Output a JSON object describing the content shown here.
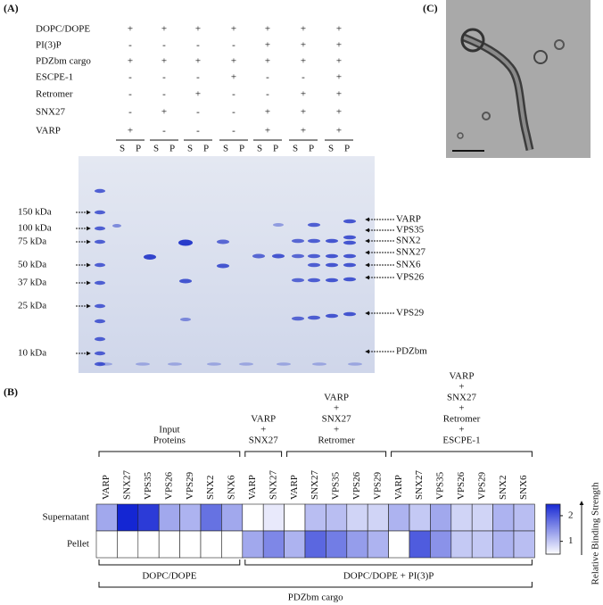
{
  "panels": {
    "a": "(A)",
    "b": "(B)",
    "c": "(C)"
  },
  "gel": {
    "conditions": [
      {
        "label": "DOPC/DOPE",
        "states": [
          "+",
          "+",
          "+",
          "+",
          "+",
          "+",
          "+"
        ]
      },
      {
        "label": "PI(3)P",
        "states": [
          "-",
          "-",
          "-",
          "-",
          "+",
          "+",
          "+"
        ]
      },
      {
        "label": "PDZbm cargo",
        "states": [
          "+",
          "+",
          "+",
          "+",
          "+",
          "+",
          "+"
        ]
      },
      {
        "label": "ESCPE-1",
        "states": [
          "-",
          "-",
          "-",
          "+",
          "-",
          "-",
          "+"
        ]
      },
      {
        "label": "Retromer",
        "states": [
          "-",
          "-",
          "+",
          "-",
          "-",
          "+",
          "+"
        ]
      },
      {
        "label": "SNX27",
        "states": [
          "-",
          "+",
          "-",
          "-",
          "+",
          "+",
          "+"
        ]
      },
      {
        "label": "VARP",
        "states": [
          "+",
          "-",
          "-",
          "-",
          "+",
          "+",
          "+"
        ]
      }
    ],
    "lane_labels": [
      "S",
      "P"
    ],
    "markers": [
      "150 kDa",
      "100 kDa",
      "75 kDa",
      "50 kDa",
      "37 kDa",
      "25 kDa",
      "10 kDa"
    ],
    "bands": [
      "VARP",
      "VPS35",
      "SNX2",
      "SNX27",
      "SNX6",
      "VPS26",
      "VPS29",
      "PDZbm"
    ]
  },
  "heatmap": {
    "groups": [
      {
        "label": [
          "Input",
          "Proteins"
        ],
        "columns": [
          "VARP",
          "SNX27",
          "VPS35",
          "VPS26",
          "VPS29",
          "SNX2",
          "SNX6"
        ]
      },
      {
        "label": [
          "VARP",
          "+",
          "SNX27"
        ],
        "columns": [
          "VARP",
          "SNX27"
        ]
      },
      {
        "label": [
          "VARP",
          "+",
          "SNX27",
          "+",
          "Retromer"
        ],
        "columns": [
          "VARP",
          "SNX27",
          "VPS35",
          "VPS26",
          "VPS29"
        ]
      },
      {
        "label": [
          "VARP",
          "+",
          "SNX27",
          "+",
          "Retromer",
          "+",
          "ESCPE-1"
        ],
        "columns": [
          "VARP",
          "SNX27",
          "VPS35",
          "VPS26",
          "VPS29",
          "SNX2",
          "SNX6"
        ]
      }
    ],
    "rows": [
      "Supernatant",
      "Pellet"
    ],
    "values": [
      [
        1.3,
        2.5,
        2.3,
        1.3,
        1.2,
        1.8,
        1.3,
        0.5,
        0.7,
        0.5,
        1.1,
        1.1,
        0.9,
        0.9,
        1.2,
        1.0,
        1.3,
        0.9,
        0.9,
        1.2,
        1.1
      ],
      [
        0.5,
        0.5,
        0.5,
        0.5,
        0.5,
        0.5,
        0.5,
        1.3,
        1.6,
        1.2,
        1.9,
        1.7,
        1.4,
        1.2,
        0.5,
        2.0,
        1.5,
        1.0,
        1.0,
        1.2,
        1.1
      ]
    ],
    "clim": [
      0.5,
      2.45
    ],
    "colors": [
      "#ffffff",
      "#1a2bd4"
    ],
    "colorbar_ticks": [
      1,
      2
    ],
    "colorbar_label": "Relative Binding Strength",
    "lipids": [
      "DOPC/DOPE",
      "DOPC/DOPE + PI(3)P"
    ],
    "cargo": "PDZbm cargo"
  }
}
